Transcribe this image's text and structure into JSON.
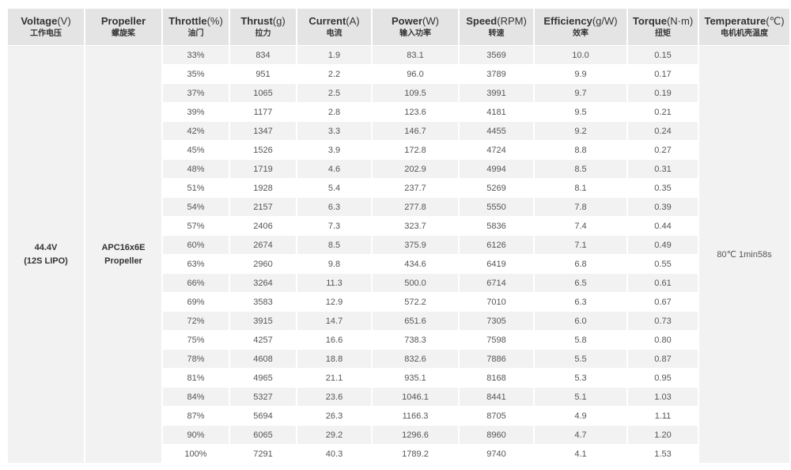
{
  "headers": [
    {
      "en": "Voltage",
      "unit": "(V)",
      "zh": "工作电压"
    },
    {
      "en": "Propeller",
      "unit": "",
      "zh": "螺旋桨"
    },
    {
      "en": "Throttle",
      "unit": "(%)",
      "zh": "油门"
    },
    {
      "en": "Thrust",
      "unit": "(g)",
      "zh": "拉力"
    },
    {
      "en": "Current",
      "unit": "(A)",
      "zh": "电流"
    },
    {
      "en": "Power",
      "unit": "(W)",
      "zh": "输入功率"
    },
    {
      "en": "Speed",
      "unit": "(RPM)",
      "zh": "转速"
    },
    {
      "en": "Efficiency",
      "unit": "(g/W)",
      "zh": "效率"
    },
    {
      "en": "Torque",
      "unit": "(N·m)",
      "zh": "扭矩"
    },
    {
      "en": "Temperature",
      "unit": "(℃)",
      "zh": "电机机壳温度"
    }
  ],
  "voltage": {
    "line1": "44.4V",
    "line2": "(12S LIPO)"
  },
  "propeller": {
    "line1": "APC16x6E",
    "line2": "Propeller"
  },
  "temperature": "80℃  1min58s",
  "rows": [
    [
      "33%",
      "834",
      "1.9",
      "83.1",
      "3569",
      "10.0",
      "0.15"
    ],
    [
      "35%",
      "951",
      "2.2",
      "96.0",
      "3789",
      "9.9",
      "0.17"
    ],
    [
      "37%",
      "1065",
      "2.5",
      "109.5",
      "3991",
      "9.7",
      "0.19"
    ],
    [
      "39%",
      "1177",
      "2.8",
      "123.6",
      "4181",
      "9.5",
      "0.21"
    ],
    [
      "42%",
      "1347",
      "3.3",
      "146.7",
      "4455",
      "9.2",
      "0.24"
    ],
    [
      "45%",
      "1526",
      "3.9",
      "172.8",
      "4724",
      "8.8",
      "0.27"
    ],
    [
      "48%",
      "1719",
      "4.6",
      "202.9",
      "4994",
      "8.5",
      "0.31"
    ],
    [
      "51%",
      "1928",
      "5.4",
      "237.7",
      "5269",
      "8.1",
      "0.35"
    ],
    [
      "54%",
      "2157",
      "6.3",
      "277.8",
      "5550",
      "7.8",
      "0.39"
    ],
    [
      "57%",
      "2406",
      "7.3",
      "323.7",
      "5836",
      "7.4",
      "0.44"
    ],
    [
      "60%",
      "2674",
      "8.5",
      "375.9",
      "6126",
      "7.1",
      "0.49"
    ],
    [
      "63%",
      "2960",
      "9.8",
      "434.6",
      "6419",
      "6.8",
      "0.55"
    ],
    [
      "66%",
      "3264",
      "11.3",
      "500.0",
      "6714",
      "6.5",
      "0.61"
    ],
    [
      "69%",
      "3583",
      "12.9",
      "572.2",
      "7010",
      "6.3",
      "0.67"
    ],
    [
      "72%",
      "3915",
      "14.7",
      "651.6",
      "7305",
      "6.0",
      "0.73"
    ],
    [
      "75%",
      "4257",
      "16.6",
      "738.3",
      "7598",
      "5.8",
      "0.80"
    ],
    [
      "78%",
      "4608",
      "18.8",
      "832.6",
      "7886",
      "5.5",
      "0.87"
    ],
    [
      "81%",
      "4965",
      "21.1",
      "935.1",
      "8168",
      "5.3",
      "0.95"
    ],
    [
      "84%",
      "5327",
      "23.6",
      "1046.1",
      "8441",
      "5.1",
      "1.03"
    ],
    [
      "87%",
      "5694",
      "26.3",
      "1166.3",
      "8705",
      "4.9",
      "1.11"
    ],
    [
      "90%",
      "6065",
      "29.2",
      "1296.6",
      "8960",
      "4.7",
      "1.20"
    ],
    [
      "100%",
      "7291",
      "40.3",
      "1789.2",
      "9740",
      "4.1",
      "1.53"
    ]
  ]
}
